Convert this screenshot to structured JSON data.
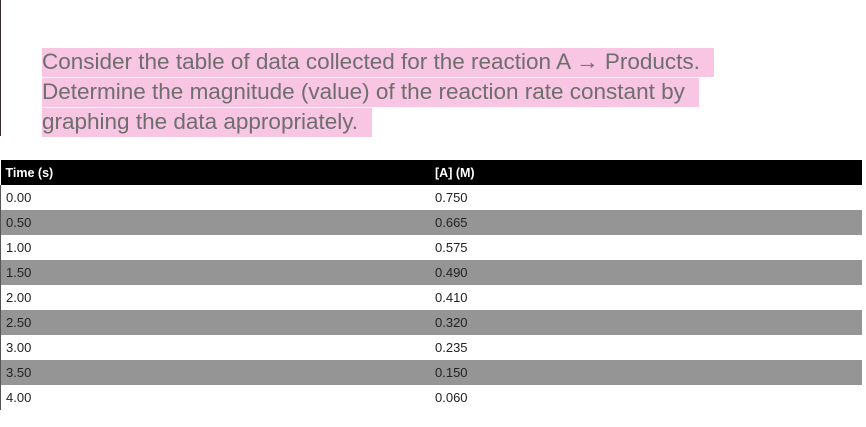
{
  "question": [
    "Consider the table of data collected for the reaction A → Products.",
    "Determine the magnitude (value) of the reaction rate constant by",
    "graphing the data appropriately."
  ],
  "table": {
    "header": [
      "Time (s)",
      "[A] (M)"
    ],
    "rows": [
      [
        "0.00",
        "0.750"
      ],
      [
        "0.50",
        "0.665"
      ],
      [
        "1.00",
        "0.575"
      ],
      [
        "1.50",
        "0.490"
      ],
      [
        "2.00",
        "0.410"
      ],
      [
        "2.50",
        "0.320"
      ],
      [
        "3.00",
        "0.235"
      ],
      [
        "3.50",
        "0.150"
      ],
      [
        "4.00",
        "0.060"
      ]
    ]
  }
}
